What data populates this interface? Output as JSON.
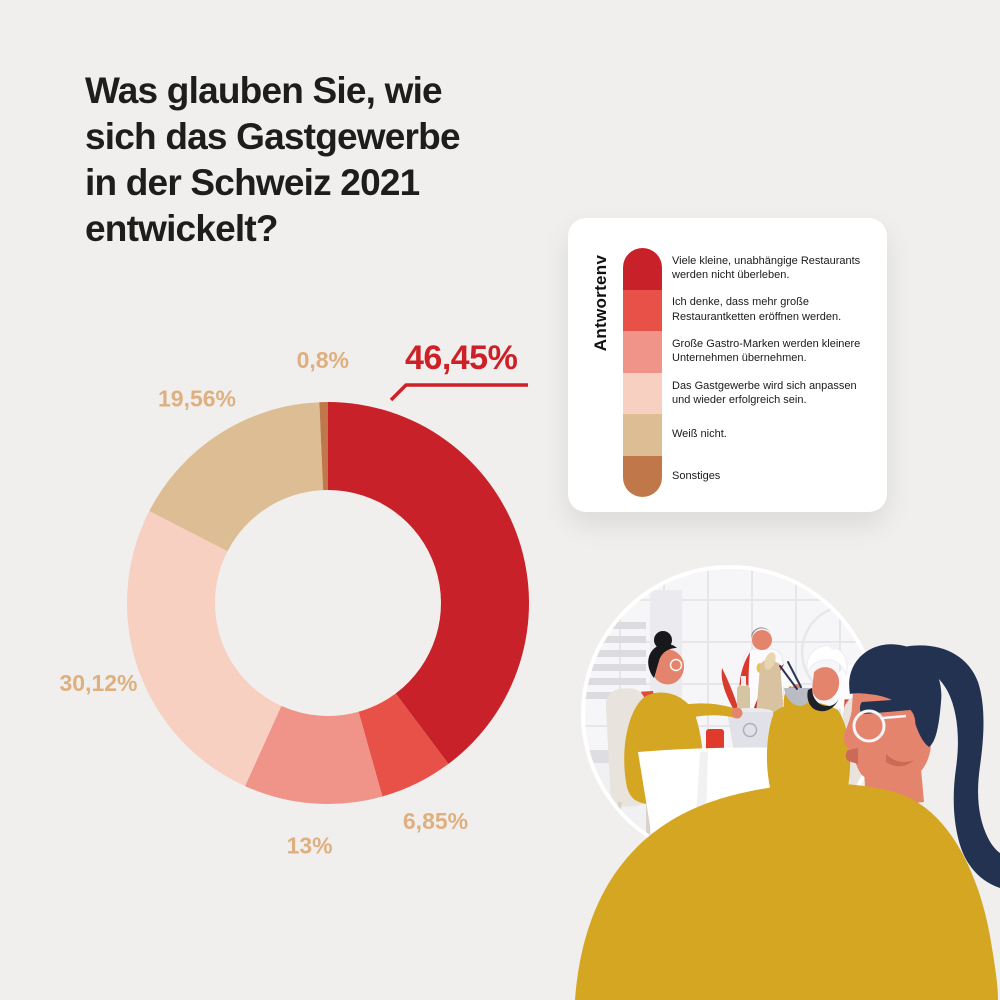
{
  "page": {
    "background_color": "#F0EFED"
  },
  "title": {
    "text": "Was glauben Sie, wie\nsich das Gastgewerbe\nin der Schweiz 2021\nentwickelt?",
    "color": "#1D1D1B"
  },
  "chart_data": {
    "type": "pie",
    "variant": "donut",
    "title": "Was glauben Sie, wie sich das Gastgewerbe in der Schweiz 2021 entwickelt?",
    "unit": "%",
    "direction": "clockwise",
    "start_angle_deg": 0,
    "inner_radius_ratio": 0.56,
    "label_color": "#DEB080",
    "emphasis_color": "#CE2127",
    "legend_title": "Antwortenv",
    "legend_position": "right",
    "slices": [
      {
        "label": "Viele kleine, unabhängige Restaurants werden nicht überleben.",
        "value": 46.45,
        "display": "46,45%",
        "color": "#C92129",
        "emphasized": true
      },
      {
        "label": "Ich denke, dass mehr große Restaurantketten eröffnen werden.",
        "value": 6.85,
        "display": "6,85%",
        "color": "#E85148",
        "emphasized": false
      },
      {
        "label": "Große Gastro-Marken werden kleinere Unternehmen übernehmen.",
        "value": 13,
        "display": "13%",
        "color": "#F0948A",
        "emphasized": false
      },
      {
        "label": "Das Gastgewerbe wird sich anpassen und wieder erfolgreich sein.",
        "value": 30.12,
        "display": "30,12%",
        "color": "#F7D0C2",
        "emphasized": false
      },
      {
        "label": "Weiß nicht.",
        "value": 19.56,
        "display": "19,56%",
        "color": "#DDBE94",
        "emphasized": false
      },
      {
        "label": "Sonstiges",
        "value": 0.8,
        "display": "0,8%",
        "color": "#C0784A",
        "emphasized": false
      }
    ]
  },
  "illustration": {
    "name": "restaurant-scene",
    "elements": [
      "diners-at-table",
      "waiter",
      "woman-with-ponytail-foreground"
    ]
  }
}
